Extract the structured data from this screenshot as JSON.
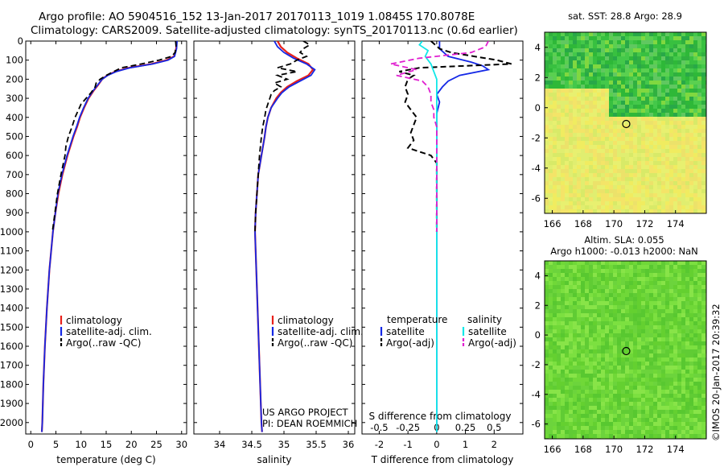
{
  "header": {
    "title_line1": "Argo profile: AO 5904516_152 13-Jan-2017 20170113_1019 1.0845S 170.8078E",
    "title_line2": "Climatology: CARS2009. Satellite-adjusted climatology: synTS_20170113.nc (0.6d earlier)"
  },
  "colors": {
    "climatology": "#e8201a",
    "satellite": "#1428e6",
    "argo": "#000000",
    "sal_satellite": "#10e8e8",
    "sal_argo": "#e020d0"
  },
  "depth_axis": {
    "ticks": [
      0,
      100,
      200,
      300,
      400,
      500,
      600,
      700,
      800,
      900,
      1000,
      1100,
      1200,
      1300,
      1400,
      1500,
      1600,
      1700,
      1800,
      1900,
      2000
    ],
    "range": [
      0,
      2060
    ]
  },
  "chart_data": [
    {
      "type": "line",
      "xlabel": "temperature (deg C)",
      "xlim": [
        -1,
        31
      ],
      "xticks": [
        0,
        5,
        10,
        15,
        20,
        25,
        30
      ],
      "legend": {
        "placement": "lower-center",
        "entries": [
          "climatology",
          "satellite-adj. clim.",
          "Argo(..raw -QC)"
        ]
      },
      "series": [
        {
          "name": "climatology",
          "depth": [
            0,
            40,
            80,
            100,
            120,
            140,
            160,
            180,
            200,
            230,
            260,
            300,
            350,
            400,
            450,
            500,
            600,
            700,
            800,
            900,
            1000,
            1200,
            1400,
            1600,
            1800,
            2000,
            2050
          ],
          "values": [
            29.0,
            28.9,
            28.5,
            27.0,
            24.0,
            19.5,
            16.8,
            15.2,
            14.2,
            13.4,
            12.5,
            11.5,
            10.6,
            9.8,
            9.2,
            8.5,
            7.3,
            6.3,
            5.5,
            4.9,
            4.4,
            3.7,
            3.2,
            2.8,
            2.5,
            2.3,
            2.2
          ]
        },
        {
          "name": "satellite-adj. clim.",
          "depth": [
            0,
            40,
            80,
            100,
            120,
            140,
            160,
            180,
            200,
            230,
            260,
            300,
            350,
            400,
            450,
            500,
            600,
            700,
            800,
            900,
            1000,
            1200,
            1400,
            1600,
            1800,
            2000,
            2050
          ],
          "values": [
            29.1,
            29.0,
            28.6,
            27.3,
            24.3,
            19.7,
            17.0,
            15.3,
            14.2,
            13.3,
            12.4,
            11.4,
            10.5,
            9.7,
            9.1,
            8.4,
            7.2,
            6.2,
            5.4,
            4.9,
            4.4,
            3.7,
            3.2,
            2.8,
            2.5,
            2.3,
            2.2
          ]
        },
        {
          "name": "Argo(..raw -QC)",
          "depth": [
            0,
            30,
            60,
            80,
            100,
            120,
            140,
            160,
            180,
            200,
            220,
            240,
            270,
            300,
            330,
            360,
            400,
            450,
            500,
            550,
            600,
            650,
            700,
            800,
            900,
            1000
          ],
          "values": [
            28.8,
            28.9,
            28.7,
            28.0,
            25.5,
            22.0,
            18.0,
            16.5,
            15.0,
            13.8,
            13.0,
            12.8,
            12.0,
            11.0,
            10.0,
            9.5,
            8.8,
            8.2,
            7.5,
            7.0,
            6.8,
            6.4,
            6.0,
            5.3,
            4.8,
            4.3
          ]
        }
      ]
    },
    {
      "type": "line",
      "xlabel": "salinity",
      "xlim": [
        33.6,
        36.1
      ],
      "xticks": [
        34,
        34.5,
        35,
        35.5,
        36
      ],
      "legend": {
        "placement": "lower-center",
        "entries": [
          "climatology",
          "satellite-adj. clim.",
          "Argo(..raw -QC)"
        ]
      },
      "series": [
        {
          "name": "climatology",
          "depth": [
            0,
            30,
            60,
            90,
            120,
            150,
            180,
            210,
            240,
            270,
            300,
            350,
            400,
            450,
            500,
            600,
            700,
            800,
            900,
            1000,
            1200,
            1500,
            1800,
            2000,
            2050
          ],
          "values": [
            34.9,
            34.95,
            35.05,
            35.2,
            35.38,
            35.45,
            35.38,
            35.2,
            35.05,
            34.95,
            34.88,
            34.8,
            34.75,
            34.72,
            34.7,
            34.65,
            34.6,
            34.58,
            34.56,
            34.55,
            34.57,
            34.6,
            34.63,
            34.65,
            34.66
          ]
        },
        {
          "name": "satellite-adj. clim.",
          "depth": [
            0,
            30,
            60,
            90,
            120,
            150,
            180,
            210,
            240,
            270,
            300,
            350,
            400,
            450,
            500,
            600,
            700,
            800,
            900,
            1000,
            1200,
            1500,
            1800,
            2000,
            2050
          ],
          "values": [
            34.85,
            34.9,
            35.0,
            35.15,
            35.35,
            35.48,
            35.42,
            35.25,
            35.08,
            34.97,
            34.9,
            34.8,
            34.75,
            34.72,
            34.7,
            34.65,
            34.6,
            34.58,
            34.56,
            34.55,
            34.57,
            34.6,
            34.63,
            34.65,
            34.66
          ]
        },
        {
          "name": "Argo(..raw -QC)",
          "depth": [
            0,
            20,
            40,
            60,
            80,
            100,
            120,
            140,
            160,
            180,
            200,
            220,
            240,
            260,
            280,
            300,
            330,
            360,
            400,
            450,
            500,
            600,
            700,
            800,
            900,
            1000
          ],
          "values": [
            35.3,
            35.4,
            35.3,
            35.25,
            35.35,
            35.2,
            35.1,
            34.9,
            35.2,
            34.9,
            35.05,
            34.85,
            34.95,
            34.85,
            34.8,
            34.78,
            34.75,
            34.72,
            34.7,
            34.67,
            34.65,
            34.62,
            34.6,
            34.58,
            34.56,
            34.55
          ]
        }
      ],
      "annotation": [
        "US ARGO PROJECT",
        "PI: DEAN ROEMMICH"
      ]
    },
    {
      "type": "line",
      "xlabel": "T difference from climatology",
      "xlabel_top": "S difference from climatology",
      "xlim": [
        -2.6,
        3.0
      ],
      "xticks": [
        -2,
        -1,
        0,
        1,
        2
      ],
      "xticks_s_labels": [
        "-0.5",
        "-0.25",
        "0",
        "0.25",
        "0.5"
      ],
      "xticks_s_positions": [
        -2,
        -1,
        0,
        1,
        2
      ],
      "legend": {
        "placement": "lower",
        "groups": [
          {
            "title": "temperature",
            "entries": [
              "satellite",
              "Argo(-adj)"
            ]
          },
          {
            "title": "salinity",
            "entries": [
              "satellite",
              "Argo(-adj)"
            ]
          }
        ]
      },
      "series": [
        {
          "name": "satellite",
          "kind": "temperature",
          "depth": [
            0,
            40,
            80,
            110,
            130,
            150,
            180,
            210,
            240,
            280,
            320,
            380,
            400,
            500,
            700,
            1000,
            1500,
            2000,
            2050
          ],
          "values": [
            0.1,
            0.1,
            0.4,
            1.2,
            1.6,
            1.8,
            0.8,
            0.4,
            0.2,
            0.0,
            0.1,
            0.0,
            0.0,
            0.0,
            0.0,
            0.0,
            0.0,
            0.0,
            0.0
          ]
        },
        {
          "name": "Argo(-adj)",
          "kind": "temperature",
          "depth": [
            0,
            40,
            60,
            80,
            100,
            120,
            140,
            160,
            180,
            200,
            240,
            280,
            320,
            360,
            400,
            440,
            480,
            520,
            560,
            600,
            640,
            700,
            800,
            900,
            1000
          ],
          "values": [
            -0.2,
            0.1,
            0.5,
            1.3,
            2.1,
            2.6,
            -0.6,
            -1.3,
            -0.8,
            -1.0,
            -1.1,
            -1.0,
            -1.1,
            -0.9,
            -0.7,
            -0.8,
            -0.9,
            -0.8,
            -1.0,
            -0.2,
            0.0,
            0.0,
            0.0,
            0.0,
            0.0
          ]
        },
        {
          "name": "satellite",
          "kind": "salinity",
          "depth": [
            0,
            20,
            50,
            80,
            120,
            160,
            200,
            240,
            300,
            400,
            500,
            700,
            1000,
            1500,
            2000,
            2050
          ],
          "values": [
            -0.5,
            -0.6,
            -0.3,
            -0.4,
            -0.2,
            -0.1,
            0.0,
            0.0,
            0.0,
            0.0,
            0.0,
            0.0,
            0.0,
            0.0,
            0.0,
            0.0
          ]
        },
        {
          "name": "Argo(-adj)",
          "kind": "salinity",
          "depth": [
            0,
            30,
            60,
            90,
            120,
            150,
            180,
            210,
            240,
            280,
            320,
            360,
            400,
            450,
            500,
            600,
            700,
            800,
            900,
            1000
          ],
          "values": [
            1.8,
            1.7,
            1.2,
            -0.6,
            -1.6,
            -0.7,
            -1.4,
            -0.5,
            -0.3,
            -0.2,
            -0.2,
            -0.1,
            -0.1,
            0.0,
            0.0,
            0.0,
            0.0,
            0.0,
            0.0,
            0.0
          ]
        }
      ]
    },
    {
      "type": "heatmap",
      "title": "sat. SST: 28.8 Argo: 28.9",
      "xlim": [
        165.5,
        176
      ],
      "ylim": [
        -7,
        5
      ],
      "xticks": [
        166,
        168,
        170,
        172,
        174
      ],
      "yticks": [
        -6,
        -4,
        -2,
        0,
        2,
        4
      ],
      "marker": {
        "lon": 170.8,
        "lat": -1.08
      }
    },
    {
      "type": "heatmap",
      "title": "Altim. SLA: 0.055",
      "subtitle": "Argo h1000: -0.013 h2000: NaN",
      "xlim": [
        165.5,
        176
      ],
      "ylim": [
        -7,
        5
      ],
      "xticks": [
        166,
        168,
        170,
        172,
        174
      ],
      "yticks": [
        -6,
        -4,
        -2,
        0,
        2,
        4
      ],
      "marker": {
        "lon": 170.8,
        "lat": -1.08
      }
    }
  ],
  "stamp": "©IMOS 20-Jan-2017 20:39:32"
}
